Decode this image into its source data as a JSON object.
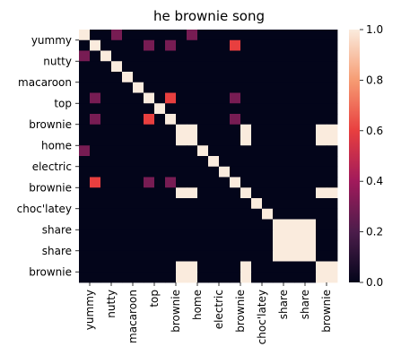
{
  "chart_data": {
    "type": "heatmap",
    "title": "he brownie song",
    "x_tick_labels": [
      "yummy",
      "nutty",
      "macaroon",
      "top",
      "brownie",
      "home",
      "electric",
      "brownie",
      "choc'latey",
      "share",
      "share",
      "brownie"
    ],
    "y_tick_labels": [
      "yummy",
      "nutty",
      "macaroon",
      "top",
      "brownie",
      "home",
      "electric",
      "brownie",
      "choc'latey",
      "share",
      "share",
      "brownie"
    ],
    "tokens": [
      "yummy",
      "yummy",
      "nutty",
      "nutty",
      "macaroon",
      "macaroon",
      "top",
      "top",
      "brownie",
      "brownie",
      "home",
      "home",
      "electric",
      "electric",
      "brownie",
      "brownie",
      "choc'latey",
      "choc'latey",
      "share",
      "share",
      "share",
      "share",
      "brownie",
      "brownie"
    ],
    "values": [
      [
        1,
        0,
        0,
        0.3,
        0,
        0,
        0,
        0,
        0,
        0,
        0.3,
        0,
        0,
        0,
        0,
        0,
        0,
        0,
        0,
        0,
        0,
        0,
        0,
        0
      ],
      [
        0,
        1,
        0,
        0,
        0,
        0,
        0.3,
        0,
        0.3,
        0,
        0,
        0,
        0,
        0,
        0.6,
        0,
        0,
        0,
        0,
        0,
        0,
        0,
        0,
        0
      ],
      [
        0.3,
        0,
        1,
        0,
        0,
        0,
        0,
        0,
        0,
        0,
        0,
        0,
        0,
        0,
        0,
        0,
        0,
        0,
        0,
        0,
        0,
        0,
        0,
        0
      ],
      [
        0,
        0,
        0,
        1,
        0,
        0,
        0,
        0,
        0,
        0,
        0,
        0,
        0,
        0,
        0,
        0,
        0,
        0,
        0,
        0,
        0,
        0,
        0,
        0
      ],
      [
        0,
        0,
        0,
        0,
        1,
        0,
        0,
        0,
        0,
        0,
        0,
        0,
        0,
        0,
        0,
        0,
        0,
        0,
        0,
        0,
        0,
        0,
        0,
        0
      ],
      [
        0,
        0,
        0,
        0,
        0,
        1,
        0,
        0,
        0,
        0,
        0,
        0,
        0,
        0,
        0,
        0,
        0,
        0,
        0,
        0,
        0,
        0,
        0,
        0
      ],
      [
        0,
        0.3,
        0,
        0,
        0,
        0,
        1,
        0,
        0.6,
        0,
        0,
        0,
        0,
        0,
        0.3,
        0,
        0,
        0,
        0,
        0,
        0,
        0,
        0,
        0
      ],
      [
        0,
        0,
        0,
        0,
        0,
        0,
        0,
        1,
        0,
        0,
        0,
        0,
        0,
        0,
        0,
        0,
        0,
        0,
        0,
        0,
        0,
        0,
        0,
        0
      ],
      [
        0,
        0.3,
        0,
        0,
        0,
        0,
        0.6,
        0,
        1,
        0,
        0,
        0,
        0,
        0,
        0.3,
        0,
        0,
        0,
        0,
        0,
        0,
        0,
        0,
        0
      ],
      [
        0,
        0,
        0,
        0,
        0,
        0,
        0,
        0,
        0,
        1,
        1,
        0,
        0,
        0,
        0,
        1,
        0,
        0,
        0,
        0,
        0,
        0,
        1,
        1
      ],
      [
        0,
        0,
        0,
        0,
        0,
        0,
        0,
        0,
        0,
        1,
        1,
        0,
        0,
        0,
        0,
        1,
        0,
        0,
        0,
        0,
        0,
        0,
        1,
        1
      ],
      [
        0.3,
        0,
        0,
        0,
        0,
        0,
        0,
        0,
        0,
        0,
        0,
        1,
        0,
        0,
        0,
        0,
        0,
        0,
        0,
        0,
        0,
        0,
        0,
        0
      ],
      [
        0,
        0,
        0,
        0,
        0,
        0,
        0,
        0,
        0,
        0,
        0,
        0,
        1,
        0,
        0,
        0,
        0,
        0,
        0,
        0,
        0,
        0,
        0,
        0
      ],
      [
        0,
        0,
        0,
        0,
        0,
        0,
        0,
        0,
        0,
        0,
        0,
        0,
        0,
        1,
        0,
        0,
        0,
        0,
        0,
        0,
        0,
        0,
        0,
        0
      ],
      [
        0,
        0.6,
        0,
        0,
        0,
        0,
        0.3,
        0,
        0.3,
        0,
        0,
        0,
        0,
        0,
        1,
        0,
        0,
        0,
        0,
        0,
        0,
        0,
        0,
        0
      ],
      [
        0,
        0,
        0,
        0,
        0,
        0,
        0,
        0,
        0,
        1,
        1,
        0,
        0,
        0,
        0,
        1,
        0,
        0,
        0,
        0,
        0,
        0,
        1,
        1
      ],
      [
        0,
        0,
        0,
        0,
        0,
        0,
        0,
        0,
        0,
        0,
        0,
        0,
        0,
        0,
        0,
        0,
        1,
        0,
        0,
        0,
        0,
        0,
        0,
        0
      ],
      [
        0,
        0,
        0,
        0,
        0,
        0,
        0,
        0,
        0,
        0,
        0,
        0,
        0,
        0,
        0,
        0,
        0,
        1,
        0,
        0,
        0,
        0,
        0,
        0
      ],
      [
        0,
        0,
        0,
        0,
        0,
        0,
        0,
        0,
        0,
        0,
        0,
        0,
        0,
        0,
        0,
        0,
        0,
        0,
        1,
        1,
        1,
        1,
        0,
        0
      ],
      [
        0,
        0,
        0,
        0,
        0,
        0,
        0,
        0,
        0,
        0,
        0,
        0,
        0,
        0,
        0,
        0,
        0,
        0,
        1,
        1,
        1,
        1,
        0,
        0
      ],
      [
        0,
        0,
        0,
        0,
        0,
        0,
        0,
        0,
        0,
        0,
        0,
        0,
        0,
        0,
        0,
        0,
        0,
        0,
        1,
        1,
        1,
        1,
        0,
        0
      ],
      [
        0,
        0,
        0,
        0,
        0,
        0,
        0,
        0,
        0,
        0,
        0,
        0,
        0,
        0,
        0,
        0,
        0,
        0,
        1,
        1,
        1,
        1,
        0,
        0
      ],
      [
        0,
        0,
        0,
        0,
        0,
        0,
        0,
        0,
        0,
        1,
        1,
        0,
        0,
        0,
        0,
        1,
        0,
        0,
        0,
        0,
        0,
        0,
        1,
        1
      ],
      [
        0,
        0,
        0,
        0,
        0,
        0,
        0,
        0,
        0,
        1,
        1,
        0,
        0,
        0,
        0,
        1,
        0,
        0,
        0,
        0,
        0,
        0,
        1,
        1
      ]
    ],
    "vmin": 0,
    "vmax": 1,
    "colorbar_ticks": [
      "0.0",
      "0.2",
      "0.4",
      "0.6",
      "0.8",
      "1.0"
    ],
    "colormap": [
      "#03051a",
      "#4c1d4b",
      "#a11a5b",
      "#e83f3f",
      "#f69c73",
      "#faebdd"
    ],
    "grid": false
  }
}
